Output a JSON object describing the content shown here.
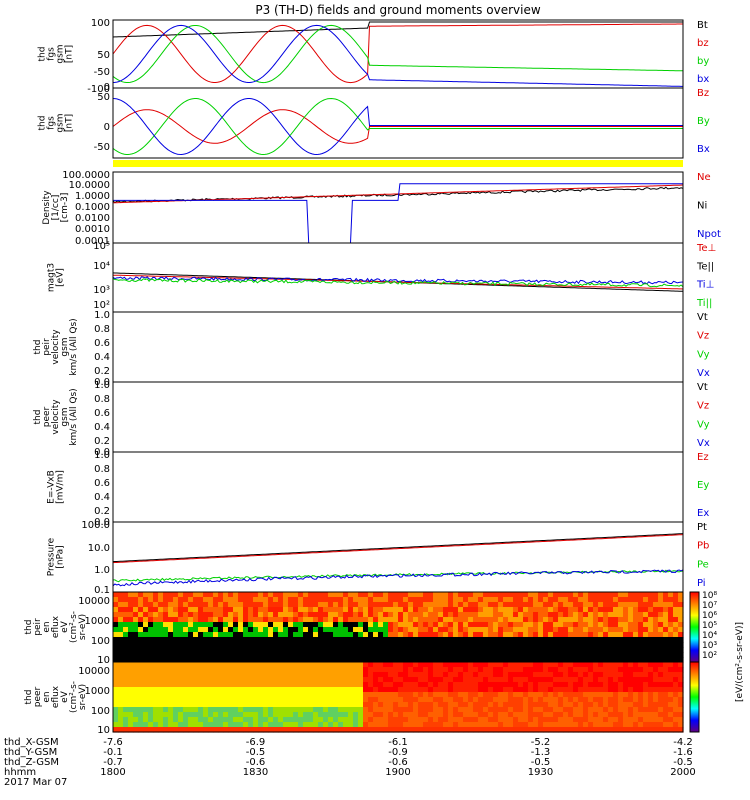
{
  "title": "P3 (TH-D) fields and ground moments overview",
  "colors": {
    "black": "#000000",
    "red": "#e00000",
    "green": "#00d000",
    "blue": "#0000e0",
    "yellow": "#ffff00"
  },
  "x_axis": {
    "hhmm": [
      "1800",
      "1830",
      "1900",
      "1930",
      "2000"
    ],
    "rows": [
      {
        "label": "thd_X-GSM",
        "values": [
          "-7.6",
          "-6.9",
          "-6.1",
          "-5.2",
          "-4.2"
        ]
      },
      {
        "label": "thd_Y-GSM",
        "values": [
          "-0.1",
          "-0.5",
          "-0.9",
          "-1.3",
          "-1.6"
        ]
      },
      {
        "label": "thd_Z-GSM",
        "values": [
          "-0.7",
          "-0.6",
          "-0.6",
          "-0.5",
          "-0.5"
        ]
      },
      {
        "label": "hhmm",
        "values": [
          "1800",
          "1830",
          "1900",
          "1930",
          "2000"
        ]
      }
    ],
    "date": "2017 Mar 07"
  },
  "colorbar": {
    "label": "[eV/(cm²-s-sr-eV)]",
    "ion_label": "[eV/(cm²-s-sr-eV) (All Qs)]",
    "ticks": [
      "10²",
      "10³",
      "10⁴",
      "10⁵",
      "10⁶",
      "10⁷",
      "10⁸"
    ]
  },
  "chart_data": [
    {
      "type": "line",
      "panel": "fgs_gsm",
      "ylabel_lines": [
        "thd",
        "fgs",
        "gsm",
        "[nT]"
      ],
      "ylim": [
        -100,
        100
      ],
      "yticks": [
        "100",
        "50",
        "0",
        "-50",
        "-100"
      ],
      "series": [
        {
          "name": "Bt",
          "color": "#000000"
        },
        {
          "name": "bz",
          "color": "#e00000"
        },
        {
          "name": "by",
          "color": "#00d000"
        },
        {
          "name": "bx",
          "color": "#0000e0"
        }
      ]
    },
    {
      "type": "line",
      "panel": "fgs_gsm_dsl",
      "ylabel_lines": [
        "thd",
        "fgs",
        "gsm",
        "[nT]"
      ],
      "ylim": [
        -80,
        80
      ],
      "yticks": [
        "50",
        "0",
        "-50"
      ],
      "series": [
        {
          "name": "Bz",
          "color": "#e00000"
        },
        {
          "name": "By",
          "color": "#00d000"
        },
        {
          "name": "Bx",
          "color": "#0000e0"
        }
      ]
    },
    {
      "type": "line",
      "panel": "density",
      "ylabel_lines": [
        "Density",
        "[1/cc]",
        "[cm-3]"
      ],
      "log": true,
      "ylim": [
        0.0001,
        100
      ],
      "yticks": [
        "100.0000",
        "10.0000",
        "1.0000",
        "0.1000",
        "0.0100",
        "0.0010",
        "0.0001"
      ],
      "series": [
        {
          "name": "Ne",
          "color": "#e00000"
        },
        {
          "name": "Ni",
          "color": "#000000"
        },
        {
          "name": "Npot",
          "color": "#0000e0"
        }
      ]
    },
    {
      "type": "line",
      "panel": "temperature",
      "ylabel_lines": [
        "magt3",
        "[eV]"
      ],
      "log": true,
      "ylim": [
        100,
        100000
      ],
      "yticks": [
        "10⁵",
        "10⁴",
        "10³",
        "10²"
      ],
      "series": [
        {
          "name": "Te⊥",
          "color": "#e00000"
        },
        {
          "name": "Te||",
          "color": "#000000"
        },
        {
          "name": "Ti⊥",
          "color": "#0000e0"
        },
        {
          "name": "Ti||",
          "color": "#00d000"
        }
      ]
    },
    {
      "type": "line",
      "panel": "peir_velocity",
      "ylabel_lines": [
        "thd",
        "peir",
        "velocity",
        "gsm",
        "km/s (All Qs)"
      ],
      "ylim": [
        0,
        1
      ],
      "yticks": [
        "1.0",
        "0.8",
        "0.6",
        "0.4",
        "0.2",
        "0.0"
      ],
      "series": [
        {
          "name": "Vt",
          "color": "#000000"
        },
        {
          "name": "Vz",
          "color": "#e00000"
        },
        {
          "name": "Vy",
          "color": "#00d000"
        },
        {
          "name": "Vx",
          "color": "#0000e0"
        }
      ]
    },
    {
      "type": "line",
      "panel": "peer_velocity",
      "ylabel_lines": [
        "thd",
        "peer",
        "velocity",
        "gsm",
        "km/s (All Qs)"
      ],
      "ylim": [
        0,
        1
      ],
      "yticks": [
        "1.0",
        "0.8",
        "0.6",
        "0.4",
        "0.2",
        "0.0"
      ],
      "series": [
        {
          "name": "Vt",
          "color": "#000000"
        },
        {
          "name": "Vz",
          "color": "#e00000"
        },
        {
          "name": "Vy",
          "color": "#00d000"
        },
        {
          "name": "Vx",
          "color": "#0000e0"
        }
      ]
    },
    {
      "type": "line",
      "panel": "efield",
      "ylabel_lines": [
        "E=-VxB",
        "[mV/m]"
      ],
      "ylim": [
        0,
        1
      ],
      "yticks": [
        "1.0",
        "0.8",
        "0.6",
        "0.4",
        "0.2",
        "0.0"
      ],
      "series": [
        {
          "name": "Ez",
          "color": "#e00000"
        },
        {
          "name": "Ey",
          "color": "#00d000"
        },
        {
          "name": "Ex",
          "color": "#0000e0"
        }
      ]
    },
    {
      "type": "line",
      "panel": "pressure",
      "ylabel_lines": [
        "Pressure",
        "[nPa]"
      ],
      "log": true,
      "ylim": [
        0.1,
        100
      ],
      "yticks": [
        "100.0",
        "10.0",
        "1.0",
        "0.1"
      ],
      "series": [
        {
          "name": "Pt",
          "color": "#000000"
        },
        {
          "name": "Pb",
          "color": "#e00000"
        },
        {
          "name": "Pe",
          "color": "#00d000"
        },
        {
          "name": "Pi",
          "color": "#0000e0"
        }
      ]
    },
    {
      "type": "heatmap",
      "panel": "peir_eflux",
      "ylabel_lines": [
        "thd",
        "peir",
        "en",
        "eflux",
        "eV",
        "(cm²-s-",
        "sr-eV)"
      ],
      "log": true,
      "ylim": [
        10,
        10000
      ],
      "yticks": [
        "10000",
        "1000",
        "100",
        "10"
      ]
    },
    {
      "type": "heatmap",
      "panel": "peer_eflux",
      "ylabel_lines": [
        "thd",
        "peer",
        "en",
        "eflux",
        "eV",
        "(cm²-s-",
        "sr-eV)"
      ],
      "log": true,
      "ylim": [
        10,
        10000
      ],
      "yticks": [
        "10000",
        "1000",
        "100",
        "10"
      ]
    }
  ]
}
